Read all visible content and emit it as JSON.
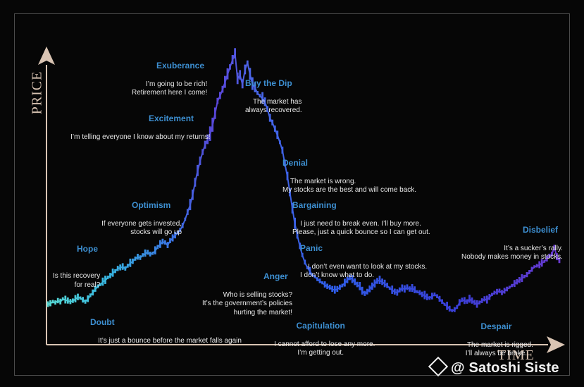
{
  "chart_data": {
    "type": "line",
    "xlabel": "TIME",
    "ylabel": "PRICE",
    "colors": {
      "start": "#4fd6d6",
      "mid": "#3a63e8",
      "peak": "#6a3ad0",
      "text_heading": "#3d8fd1",
      "axis": "#d9c4b3"
    },
    "series_y": [
      30,
      31,
      33,
      32,
      34,
      33,
      36,
      35,
      34,
      33,
      34,
      36,
      38,
      37,
      35,
      33,
      36,
      40,
      43,
      47,
      50,
      52,
      55,
      57,
      60,
      62,
      65,
      67,
      70,
      71,
      72,
      70,
      73,
      76,
      78,
      81,
      83,
      82,
      85,
      87,
      88,
      86,
      87,
      90,
      94,
      97,
      100,
      99,
      96,
      101,
      104,
      107,
      110,
      113,
      118,
      125,
      133,
      141,
      152,
      166,
      179,
      190,
      200,
      208,
      214,
      220,
      230,
      243,
      257,
      263,
      270,
      278,
      287,
      295,
      303,
      310,
      282,
      286,
      276,
      292,
      300,
      287,
      276,
      272,
      266,
      263,
      260,
      256,
      248,
      238,
      233,
      226,
      219,
      211,
      202,
      187,
      173,
      155,
      137,
      120,
      107,
      95,
      85,
      77,
      71,
      67,
      63,
      61,
      58,
      56,
      54,
      52,
      50,
      49,
      47,
      46,
      47,
      49,
      51,
      54,
      57,
      60,
      58,
      55,
      52,
      50,
      45,
      42,
      44,
      47,
      50,
      53,
      56,
      57,
      55,
      53,
      51,
      48,
      46,
      44,
      43,
      46,
      48,
      47,
      49,
      47,
      48,
      46,
      44,
      43,
      41,
      40,
      38,
      37,
      39,
      41,
      39,
      36,
      33,
      30,
      28,
      25,
      23,
      24,
      27,
      32,
      35,
      34,
      33,
      36,
      34,
      32,
      30,
      32,
      34,
      36,
      35,
      38,
      41,
      43,
      44,
      45,
      43,
      45,
      47,
      49,
      51,
      53,
      55,
      57,
      59,
      61,
      63,
      66,
      69,
      72,
      73,
      74,
      76,
      78,
      81,
      84,
      86,
      94,
      83,
      79
    ],
    "annotations": [
      {
        "key": "doubt",
        "title": "Doubt",
        "text": "It’s just a bounce before the market falls again"
      },
      {
        "key": "hope",
        "title": "Hope",
        "text": "Is this recovery\nfor real?"
      },
      {
        "key": "optimism",
        "title": "Optimism",
        "text": "If everyone gets invested,\nstocks will go up"
      },
      {
        "key": "excitement",
        "title": "Excitement",
        "text": "I’m telling everyone I know about my returns!"
      },
      {
        "key": "exuberance",
        "title": "Exuberance",
        "text": "I’m going to be rich!\nRetirement here I come!"
      },
      {
        "key": "buy_the_dip",
        "title": "Buy the Dip",
        "text": "The market has\nalways recovered."
      },
      {
        "key": "denial",
        "title": "Denial",
        "text": "The market is wrong.\nMy stocks are the best and will come back."
      },
      {
        "key": "bargaining",
        "title": "Bargaining",
        "text": "I just need to break even. I’ll buy more.\nPlease, just a quick bounce so I can get out."
      },
      {
        "key": "panic",
        "title": "Panic",
        "text": "I don’t even want to look at my stocks.\nI don’t know what to do."
      },
      {
        "key": "anger",
        "title": "Anger",
        "text": "Who is selling stocks?\nIt’s the government’s policies\nhurting the market!"
      },
      {
        "key": "capitulation",
        "title": "Capitulation",
        "text": "I cannot afford to lose any more.\nI’m getting out."
      },
      {
        "key": "despair",
        "title": "Despair",
        "text": "The market is rigged.\nI’ll always be broke."
      },
      {
        "key": "disbelief",
        "title": "Disbelief",
        "text": "It’s a sucker’s rally.\nNobody makes money in stocks."
      }
    ]
  },
  "watermark": "@ Satoshi Siste"
}
